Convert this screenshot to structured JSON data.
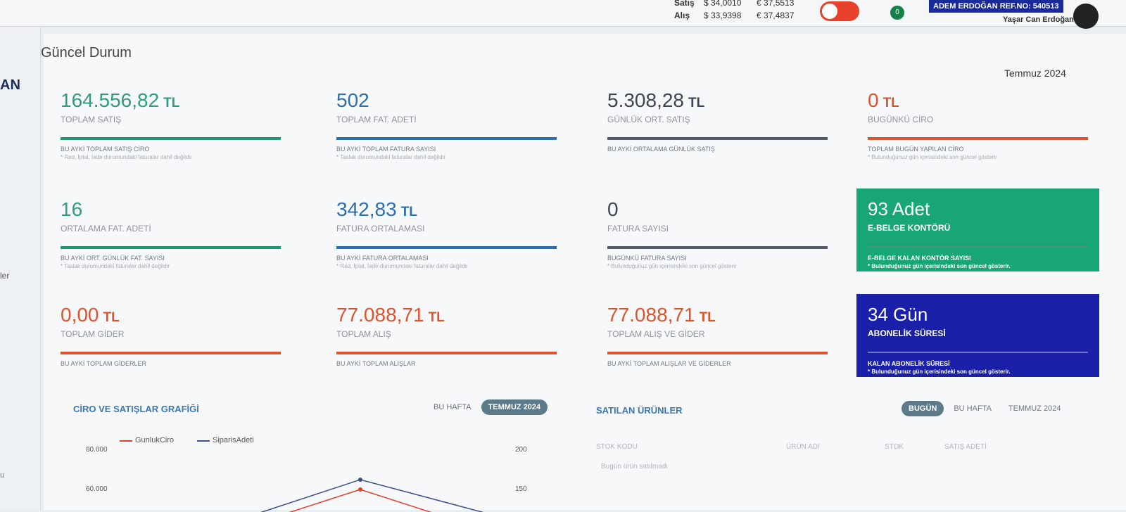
{
  "header": {
    "sales_label": "Satış",
    "sales_usd": "$ 34,0010",
    "sales_eur": "€ 37,5513",
    "buy_label": "Alış",
    "buy_usd": "$ 33,9398",
    "buy_eur": "€ 37,4837",
    "mail_badge": "0",
    "ref": "ADEM ERDOĞAN REF.NO: 540513",
    "user": "Yaşar Can Erdoğan"
  },
  "sidebar": {
    "items": [
      "AN",
      "ler",
      "u"
    ]
  },
  "page": {
    "title": "Güncel Durum",
    "period": "Temmuz 2024"
  },
  "cards": [
    {
      "value": "164.556,82",
      "unit": "TL",
      "label": "TOPLAM SATIŞ",
      "sub": "BU AYKİ TOPLAM SATIŞ CİRO",
      "note": "* Red, İptal, İade durumundaki faturalar dahil değildir",
      "color": "#2e9c83",
      "line": "#1f9a6e"
    },
    {
      "value": "502",
      "label": "TOPLAM FAT. ADETİ",
      "sub": "BU AYKİ TOPLAM FATURA SAYISI",
      "note": "* Taslak durumundaki faturalar dahil değildir",
      "color": "#2c6fae",
      "line": "#2c6fae"
    },
    {
      "value": "5.308,28",
      "unit": "TL",
      "label": "GÜNLÜK ORT. SATIŞ",
      "sub": "BU AYKİ ORTALAMA GÜNLÜK SATIŞ",
      "color": "#3d4654",
      "line": "#545b69"
    },
    {
      "value": "0",
      "unit": "TL",
      "label": "BUGÜNKÜ CİRO",
      "sub": "TOPLAM BUGÜN YAPILAN CİRO",
      "note": "* Bulunduğunuz gün içerisindeki son güncel gösterir",
      "color": "#e0522c",
      "line": "#e0522c"
    },
    {
      "value": "16",
      "label": "ORTALAMA FAT. ADETİ",
      "sub": "BU AYKİ ORT. GÜNLÜK FAT. SAYISI",
      "note": "* Taslak durumundaki faturalar dahil değildir",
      "color": "#2e9c83",
      "line": "#1f9a6e"
    },
    {
      "value": "342,83",
      "unit": "TL",
      "label": "FATURA ORTALAMASI",
      "sub": "BU AYKİ FATURA ORTALAMASI",
      "note": "* Red, İptal, İade durumundaki faturalar dahil değildir",
      "color": "#2c6fae",
      "line": "#2c6fae"
    },
    {
      "value": "0",
      "label": "FATURA SAYISI",
      "sub": "BUGÜNKÜ FATURA SAYISI",
      "note": "* Bulunduğunuz gün içerisindeki son güncel gösterir",
      "color": "#3d4654",
      "line": "#545b69"
    },
    {
      "value": "93 Adet",
      "label": "E-BELGE KONTÖRÜ",
      "sub": "E-BELGE KALAN KONTÖR SAYISI",
      "note": "* Bulunduğunuz gün içerisindeki son güncel gösterir.",
      "color": "#ffffff",
      "line": "#5a8f7a",
      "fill": "#17a674"
    },
    {
      "value": "0,00",
      "unit": "TL",
      "label": "TOPLAM GİDER",
      "sub": "BU AYKİ TOPLAM GİDERLER",
      "color": "#e0522c",
      "line": "#e0522c"
    },
    {
      "value": "77.088,71",
      "unit": "TL",
      "label": "TOPLAM ALIŞ",
      "sub": "BU AYKİ TOPLAM ALIŞLAR",
      "color": "#e0522c",
      "line": "#e0522c"
    },
    {
      "value": "77.088,71",
      "unit": "TL",
      "label": "TOPLAM ALIŞ VE GİDER",
      "sub": "BU AYKİ TOPLAM ALIŞLAR VE GİDERLER",
      "color": "#e0522c",
      "line": "#e0522c"
    },
    {
      "value": "34 Gün",
      "label": "ABONELİK SÜRESİ",
      "sub": "KALAN ABONELİK SÜRESİ",
      "note": "* Bulunduğunuz gün içerisindeki son güncel gösterir.",
      "color": "#ffffff",
      "line": "#6a74c8",
      "fill": "#1a20a8"
    }
  ],
  "chart_panel": {
    "title": "CİRO VE SATIŞLAR GRAFİĞİ",
    "tabs": [
      "BU HAFTA",
      "TEMMUZ 2024"
    ],
    "legend": [
      {
        "name": "GunlukCiro",
        "color": "#e0402c"
      },
      {
        "name": "SiparisAdeti",
        "color": "#3b4f8c"
      }
    ],
    "yticks": [
      "80.000",
      "60.000"
    ],
    "y2ticks": [
      "200",
      "150"
    ]
  },
  "products_panel": {
    "title": "SATILAN ÜRÜNLER",
    "tabs": [
      "BUGÜN",
      "BU HAFTA",
      "TEMMUZ 2024"
    ],
    "columns": [
      "STOK KODU",
      "ÜRÜN ADI",
      "STOK",
      "SATIŞ ADETİ"
    ],
    "empty": "Bugün ürün satılmadı"
  }
}
